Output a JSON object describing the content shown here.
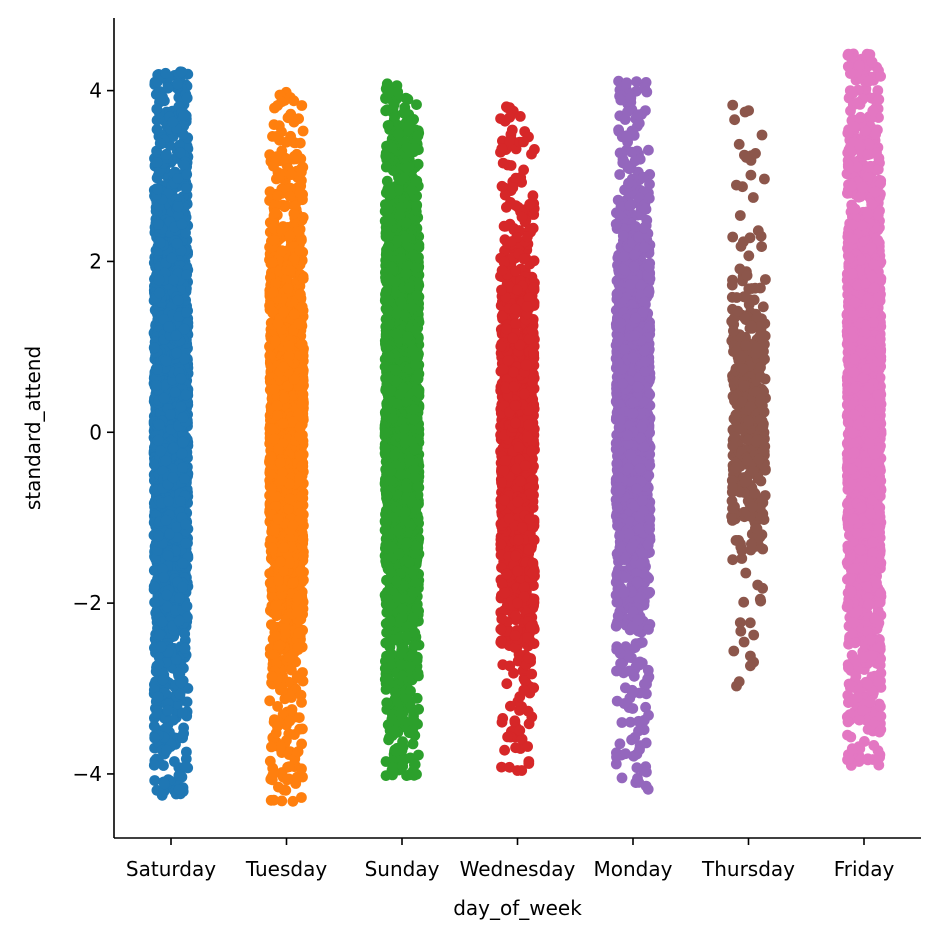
{
  "chart_data": {
    "type": "scatter",
    "subtype": "strip",
    "xlabel": "day_of_week",
    "ylabel": "standard_attend",
    "categories": [
      "Saturday",
      "Tuesday",
      "Sunday",
      "Wednesday",
      "Monday",
      "Thursday",
      "Friday"
    ],
    "colors": [
      "#1f77b4",
      "#ff7f0e",
      "#2ca02c",
      "#d62728",
      "#9467bd",
      "#8c564b",
      "#e377c2"
    ],
    "ylim": [
      -4.75,
      4.85
    ],
    "yticks": [
      -4,
      -2,
      0,
      2,
      4
    ],
    "ytick_labels": [
      "−4",
      "−2",
      "0",
      "2",
      "4"
    ],
    "grid": false,
    "legend": "none",
    "series": [
      {
        "category": "Saturday",
        "count": 2600,
        "y_min": -4.25,
        "y_max": 4.22,
        "dense_range": [
          -3.0,
          3.6
        ]
      },
      {
        "category": "Tuesday",
        "count": 2000,
        "y_min": -4.32,
        "y_max": 3.98,
        "dense_range": [
          -2.8,
          2.8
        ]
      },
      {
        "category": "Sunday",
        "count": 2600,
        "y_min": -4.02,
        "y_max": 4.08,
        "dense_range": [
          -2.9,
          3.4
        ]
      },
      {
        "category": "Wednesday",
        "count": 1400,
        "y_min": -3.96,
        "y_max": 3.81,
        "dense_range": [
          -2.6,
          2.3
        ]
      },
      {
        "category": "Monday",
        "count": 1600,
        "y_min": -4.18,
        "y_max": 4.11,
        "dense_range": [
          -2.4,
          3.0
        ]
      },
      {
        "category": "Thursday",
        "count": 450,
        "y_min": -2.97,
        "y_max": 3.83,
        "dense_range": [
          -1.6,
          2.0
        ]
      },
      {
        "category": "Friday",
        "count": 2400,
        "y_min": -3.9,
        "y_max": 4.43,
        "dense_range": [
          -2.8,
          3.6
        ]
      }
    ]
  }
}
